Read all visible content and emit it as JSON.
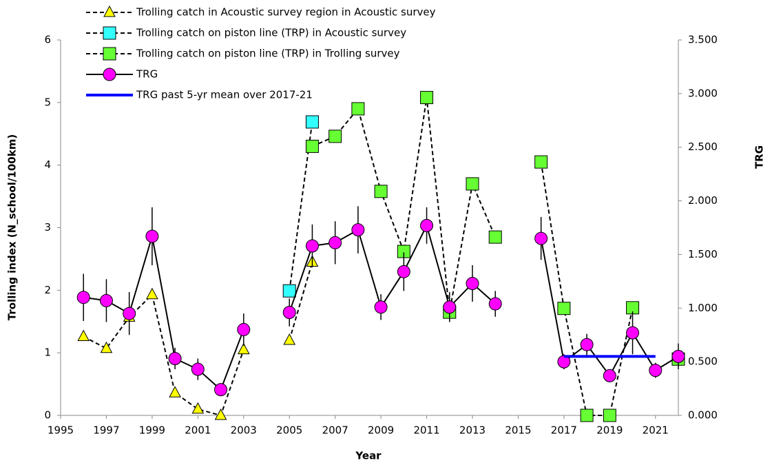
{
  "chart_data": {
    "type": "line",
    "x_label": "Year",
    "y_label": "Trolling index (N_school/100km)",
    "y2_label": "TRG",
    "xlim": [
      1995,
      2022
    ],
    "xticks": [
      1995,
      1997,
      1999,
      2001,
      2003,
      2005,
      2007,
      2009,
      2011,
      2013,
      2015,
      2017,
      2019,
      2021
    ],
    "ylim": [
      0,
      6
    ],
    "yticks": [
      0,
      1,
      2,
      3,
      4,
      5,
      6
    ],
    "y2lim": [
      0,
      3.5
    ],
    "y2ticks": [
      {
        "value": 0,
        "label": "0.000"
      },
      {
        "value": 0.5,
        "label": "0.500"
      },
      {
        "value": 1,
        "label": "1.000"
      },
      {
        "value": 1.5,
        "label": "1.500"
      },
      {
        "value": 2,
        "label": "2.000"
      },
      {
        "value": 2.5,
        "label": "2.500"
      },
      {
        "value": 3,
        "label": "3.000"
      },
      {
        "value": 3.5,
        "label": "3.500"
      }
    ],
    "grid": false,
    "series": [
      {
        "name": "Trolling catch in Acoustic survey region in Acoustic survey",
        "color": "#ffff00",
        "marker": "triangle",
        "line_style": "dashed",
        "x": [
          1996,
          1997,
          1998,
          1999,
          2000,
          2001,
          2002,
          2003,
          2004,
          2005,
          2006
        ],
        "values": [
          1.26,
          1.07,
          1.57,
          1.93,
          0.36,
          0.1,
          0,
          1.05,
          null,
          1.2,
          2.45
        ]
      },
      {
        "name": "Trolling catch on piston line (TRP) in Acoustic survey",
        "color": "#33ffff",
        "marker": "square",
        "line_style": "dashed",
        "x": [
          2005,
          2006
        ],
        "values": [
          1.99,
          4.69
        ]
      },
      {
        "name": "Trolling catch on piston line (TRP) in Trolling survey",
        "color": "#66ff33",
        "marker": "square",
        "line_style": "dashed",
        "x": [
          2006,
          2007,
          2008,
          2009,
          2010,
          2011,
          2012,
          2013,
          2014,
          2015,
          2016,
          2017,
          2018,
          2019,
          2020,
          2021,
          2022
        ],
        "values": [
          4.3,
          4.46,
          4.9,
          3.58,
          2.62,
          5.08,
          1.65,
          3.7,
          2.85,
          null,
          4.05,
          1.71,
          0,
          0,
          1.72,
          null,
          0.9
        ]
      },
      {
        "name": "TRG",
        "color": "#ff00ff",
        "marker": "circle",
        "line_style": "solid",
        "axis": "y2",
        "x": [
          1996,
          1997,
          1998,
          1999,
          2000,
          2001,
          2002,
          2003,
          2004,
          2005,
          2006,
          2007,
          2008,
          2009,
          2010,
          2011,
          2012,
          2013,
          2014,
          2015,
          2016,
          2017,
          2018,
          2019,
          2020,
          2021,
          2022
        ],
        "values": [
          1.1,
          1.07,
          0.95,
          1.67,
          0.53,
          0.43,
          0.24,
          0.8,
          null,
          0.96,
          1.58,
          1.61,
          1.73,
          1.01,
          1.34,
          1.77,
          1.01,
          1.23,
          1.04,
          null,
          1.65,
          0.5,
          0.66,
          0.37,
          0.77,
          0.42,
          0.55
        ],
        "errors": [
          0.22,
          0.2,
          0.2,
          0.27,
          0.1,
          0.1,
          0.05,
          0.15,
          null,
          0.13,
          0.2,
          0.2,
          0.22,
          0.12,
          0.18,
          0.17,
          0.14,
          0.17,
          0.12,
          null,
          0.2,
          0.07,
          0.1,
          0.05,
          0.2,
          0.07,
          0.12
        ]
      },
      {
        "name": "TRG past 5-yr mean over 2017-21",
        "color": "#0000ff",
        "marker": "none",
        "line_style": "thick",
        "axis": "y2",
        "x": [
          2017,
          2021
        ],
        "values": [
          0.55,
          0.55
        ]
      }
    ]
  }
}
